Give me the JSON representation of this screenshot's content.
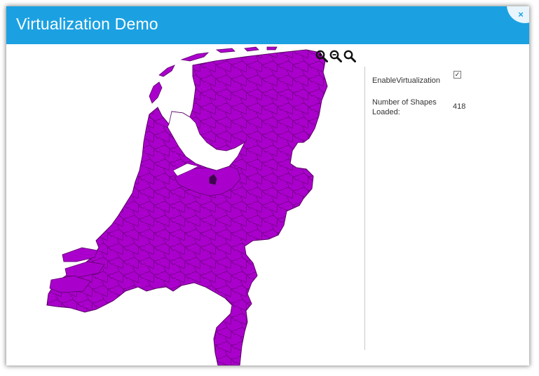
{
  "window": {
    "title": "Virtualization Demo"
  },
  "close": {
    "glyph": "×"
  },
  "map": {
    "fill_color": "#aa00cc",
    "border_color": "#5a0066"
  },
  "zoom_toolbar": {
    "zoom_in": "zoom-in-icon",
    "zoom_out": "zoom-out-icon",
    "zoom_reset": "zoom-reset-icon"
  },
  "settings": {
    "enable_virtualization_label": "EnableVirtualization",
    "enable_virtualization_checked": "✓",
    "shapes_loaded_label_line1": "Number of Shapes",
    "shapes_loaded_label_line2": "Loaded:",
    "shapes_loaded_value": "418"
  }
}
